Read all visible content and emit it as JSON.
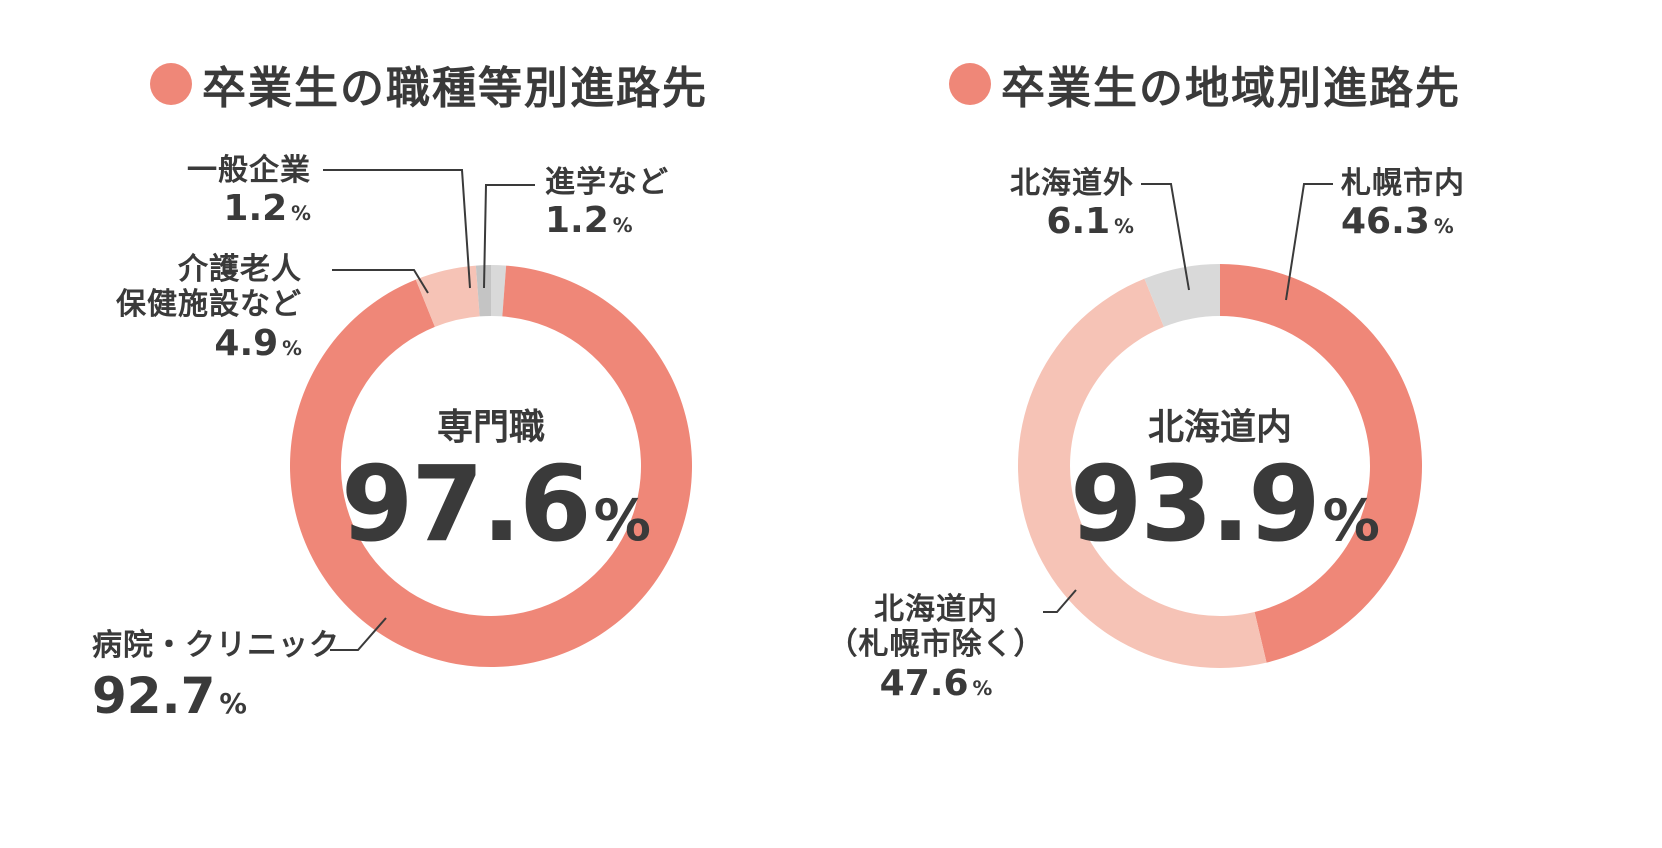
{
  "colors": {
    "dark": "#ef8778",
    "light": "#f6c3b6",
    "gray": "#d9d9d9",
    "grayDark": "#c4c4c4",
    "text": "#3a3a3a",
    "line": "#3a3a3a"
  },
  "chart_data": [
    {
      "type": "pie",
      "title": "卒業生の職種等別進路先",
      "center": {
        "label": "専門職",
        "value": "97.6",
        "unit": "%"
      },
      "slices": [
        {
          "name": "病院・クリニック",
          "value": 92.7,
          "display": "92.7",
          "color": "#ef8778"
        },
        {
          "name": "介護老人保健施設など",
          "value": 4.9,
          "display": "4.9",
          "color": "#f6c3b6"
        },
        {
          "name": "一般企業",
          "value": 1.2,
          "display": "1.2",
          "color": "#c4c4c4"
        },
        {
          "name": "進学など",
          "value": 1.2,
          "display": "1.2",
          "color": "#d9d9d9"
        }
      ]
    },
    {
      "type": "pie",
      "title": "卒業生の地域別進路先",
      "center": {
        "label": "北海道内",
        "value": "93.9",
        "unit": "%"
      },
      "slices": [
        {
          "name": "札幌市内",
          "value": 46.3,
          "display": "46.3",
          "color": "#ef8778"
        },
        {
          "name": "北海道内（札幌市除く）",
          "value": 47.6,
          "display": "47.6",
          "color": "#f6c3b6"
        },
        {
          "name": "北海道外",
          "value": 6.1,
          "display": "6.1",
          "color": "#d9d9d9"
        }
      ]
    }
  ],
  "labels": {
    "left": [
      {
        "name_lines": [
          "病院・クリニック"
        ],
        "value": "92.7"
      },
      {
        "name_lines": [
          "介護老人",
          "保健施設など"
        ],
        "value": "4.9"
      },
      {
        "name_lines": [
          "一般企業"
        ],
        "value": "1.2"
      },
      {
        "name_lines": [
          "進学など"
        ],
        "value": "1.2"
      }
    ],
    "right": [
      {
        "name_lines": [
          "札幌市内"
        ],
        "value": "46.3"
      },
      {
        "name_lines": [
          "北海道内",
          "（札幌市除く）"
        ],
        "value": "47.6"
      },
      {
        "name_lines": [
          "北海道外"
        ],
        "value": "6.1"
      }
    ]
  },
  "unit": "%"
}
